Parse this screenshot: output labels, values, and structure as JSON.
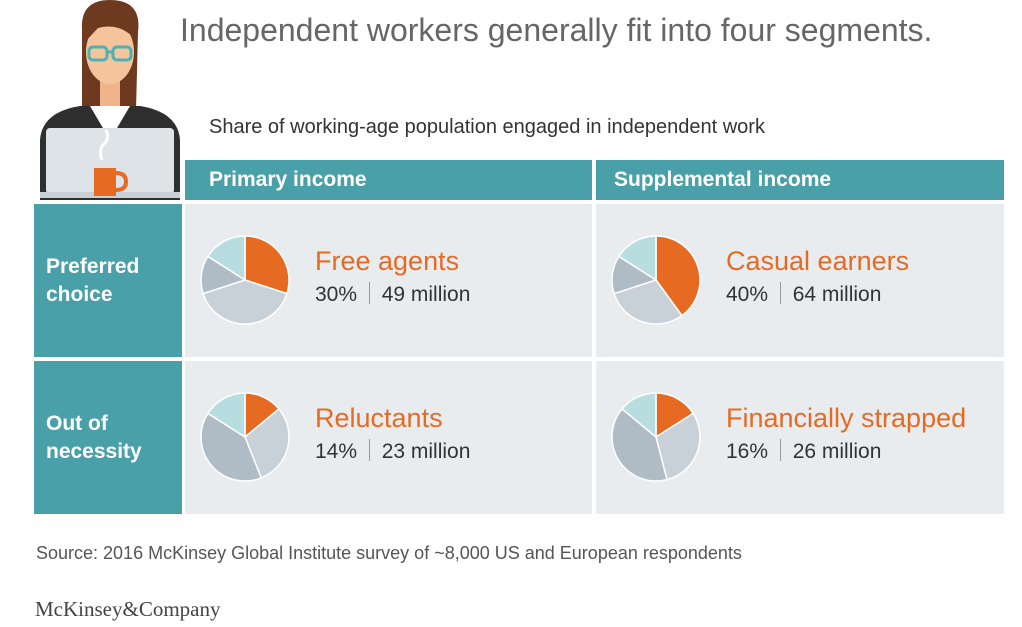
{
  "title": "Independent workers generally fit into four segments.",
  "subtitle": "Share of working-age population engaged in independent work",
  "colors": {
    "teal_header": "#4aa0a9",
    "cell_background": "#e8ecef",
    "accent_orange": "#e66a22",
    "pie_gray_light": "#c8d1d8",
    "pie_gray_mid": "#b0bcc5",
    "pie_teal_light": "#b7dde0",
    "pie_teal": "#8fd1d3"
  },
  "column_headers": [
    "Primary income",
    "Supplemental income"
  ],
  "row_headers": [
    "Preferred choice",
    "Out of necessity"
  ],
  "chart_data": {
    "type": "pie",
    "segments": [
      {
        "name": "Free agents",
        "percent": 30,
        "millions": 49,
        "stats": "30% | 49 million",
        "row": "Preferred choice",
        "column": "Primary income"
      },
      {
        "name": "Casual earners",
        "percent": 40,
        "millions": 64,
        "stats": "40% | 64 million",
        "row": "Preferred choice",
        "column": "Supplemental income"
      },
      {
        "name": "Reluctants",
        "percent": 14,
        "millions": 23,
        "stats": "14% | 23 million",
        "row": "Out of necessity",
        "column": "Primary income"
      },
      {
        "name": "Financially strapped",
        "percent": 16,
        "millions": 26,
        "stats": "16% | 26 million",
        "row": "Out of necessity",
        "column": "Supplemental income"
      }
    ]
  },
  "source": "Source: 2016 McKinsey Global Institute survey of ~8,000 US and European respondents",
  "logo_text": "McKinsey&Company",
  "illustration": {
    "icon": "woman-at-laptop-icon"
  }
}
